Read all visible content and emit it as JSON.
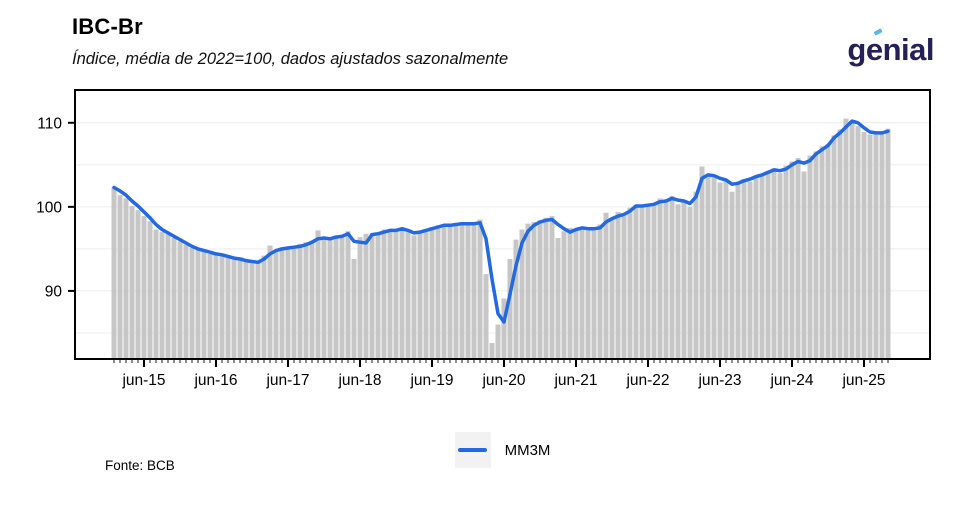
{
  "header": {
    "title": "IBC-Br",
    "subtitle": "Índice, média de 2022=100, dados ajustados sazonalmente",
    "logo_text": "genial"
  },
  "footer": {
    "source": "Fonte: BCB"
  },
  "legend": {
    "items": [
      {
        "label": "MM3M",
        "color": "#2269e3"
      }
    ]
  },
  "colors": {
    "bar": "#c6c6c6",
    "line": "#2269e3",
    "grid": "#ececec",
    "axis": "#000000",
    "tick_minor": "#444444",
    "logo_navy": "#232158",
    "logo_accent": "#55b7ea",
    "legend_key_bg": "#f2f2f2"
  },
  "chart_data": {
    "type": "bar+line",
    "title": "IBC-Br",
    "subtitle": "Índice, média de 2022=100, dados ajustados sazonalmente",
    "frequency": "monthly",
    "start": "2015-01",
    "end": "2025-10",
    "y_ticks": [
      90,
      100,
      110
    ],
    "ylim": [
      81.9,
      113.9
    ],
    "grid_values": [
      85,
      90,
      95,
      100,
      105,
      110
    ],
    "x_tick_labels": [
      "jun-15",
      "jun-16",
      "jun-17",
      "jun-18",
      "jun-19",
      "jun-20",
      "jun-21",
      "jun-22",
      "jun-23",
      "jun-24",
      "jun-25"
    ],
    "x_major_indices": [
      5,
      17,
      29,
      41,
      53,
      65,
      77,
      89,
      101,
      113,
      125
    ],
    "bars": {
      "name": "IBC-Br mensal (dessazonalizado)",
      "values": [
        102.3,
        101.4,
        101.0,
        100.1,
        99.6,
        98.9,
        98.3,
        97.3,
        97.0,
        96.8,
        96.3,
        95.9,
        95.5,
        95.1,
        94.9,
        94.7,
        94.4,
        94.5,
        94.2,
        94.0,
        93.8,
        94.0,
        93.6,
        93.5,
        93.6,
        94.2,
        95.4,
        94.7,
        95.2,
        95.3,
        95.1,
        95.6,
        95.8,
        96.0,
        97.2,
        96.1,
        96.3,
        96.6,
        96.7,
        97.1,
        93.8,
        96.4,
        96.8,
        96.9,
        96.7,
        97.3,
        97.1,
        97.3,
        97.5,
        97.0,
        96.6,
        97.2,
        97.3,
        97.6,
        97.8,
        97.9,
        97.7,
        97.9,
        98.1,
        97.9,
        98.2,
        98.5,
        92.0,
        83.8,
        86.0,
        89.1,
        93.8,
        96.1,
        97.3,
        98.0,
        98.2,
        98.4,
        98.7,
        98.9,
        96.3,
        97.1,
        97.5,
        97.3,
        97.6,
        97.2,
        97.4,
        97.9,
        99.3,
        98.6,
        99.4,
        99.1,
        99.9,
        100.2,
        100.1,
        100.4,
        100.3,
        101.0,
        100.8,
        101.3,
        100.3,
        100.6,
        100.0,
        101.8,
        104.8,
        103.9,
        103.5,
        102.9,
        103.1,
        101.8,
        102.7,
        103.3,
        103.0,
        103.6,
        103.9,
        104.3,
        104.6,
        104.0,
        104.9,
        105.4,
        105.8,
        104.2,
        106.1,
        106.6,
        107.2,
        107.5,
        108.5,
        109.2,
        110.5,
        110.0,
        109.6,
        108.9,
        108.6,
        108.7,
        108.6,
        109.3
      ]
    },
    "line": {
      "name": "MM3M",
      "values": [
        102.3,
        101.9,
        101.4,
        100.7,
        100.1,
        99.4,
        98.7,
        97.9,
        97.3,
        96.9,
        96.5,
        96.1,
        95.7,
        95.3,
        95.0,
        94.8,
        94.6,
        94.4,
        94.3,
        94.1,
        93.9,
        93.8,
        93.6,
        93.5,
        93.4,
        93.8,
        94.4,
        94.8,
        95.0,
        95.1,
        95.2,
        95.3,
        95.5,
        95.8,
        96.2,
        96.3,
        96.2,
        96.4,
        96.5,
        96.8,
        95.9,
        95.8,
        95.7,
        96.7,
        96.8,
        97.0,
        97.2,
        97.2,
        97.4,
        97.2,
        96.9,
        97.0,
        97.2,
        97.4,
        97.6,
        97.8,
        97.8,
        97.9,
        98.0,
        98.0,
        98.0,
        98.1,
        96.2,
        91.4,
        87.3,
        86.3,
        89.6,
        93.0,
        95.7,
        97.1,
        97.8,
        98.2,
        98.4,
        98.5,
        97.9,
        97.4,
        97.0,
        97.3,
        97.5,
        97.4,
        97.4,
        97.5,
        98.2,
        98.6,
        98.9,
        99.1,
        99.5,
        100.1,
        100.1,
        100.2,
        100.3,
        100.6,
        100.7,
        101.0,
        100.8,
        100.7,
        100.4,
        101.2,
        103.4,
        103.8,
        103.7,
        103.4,
        103.2,
        102.7,
        102.8,
        103.1,
        103.3,
        103.6,
        103.8,
        104.1,
        104.4,
        104.3,
        104.5,
        105.0,
        105.4,
        105.2,
        105.5,
        106.3,
        106.8,
        107.3,
        108.2,
        108.8,
        109.5,
        110.2,
        110.0,
        109.4,
        108.9,
        108.8,
        108.8,
        109.0
      ]
    },
    "legend_position": "bottom",
    "grid": true
  }
}
